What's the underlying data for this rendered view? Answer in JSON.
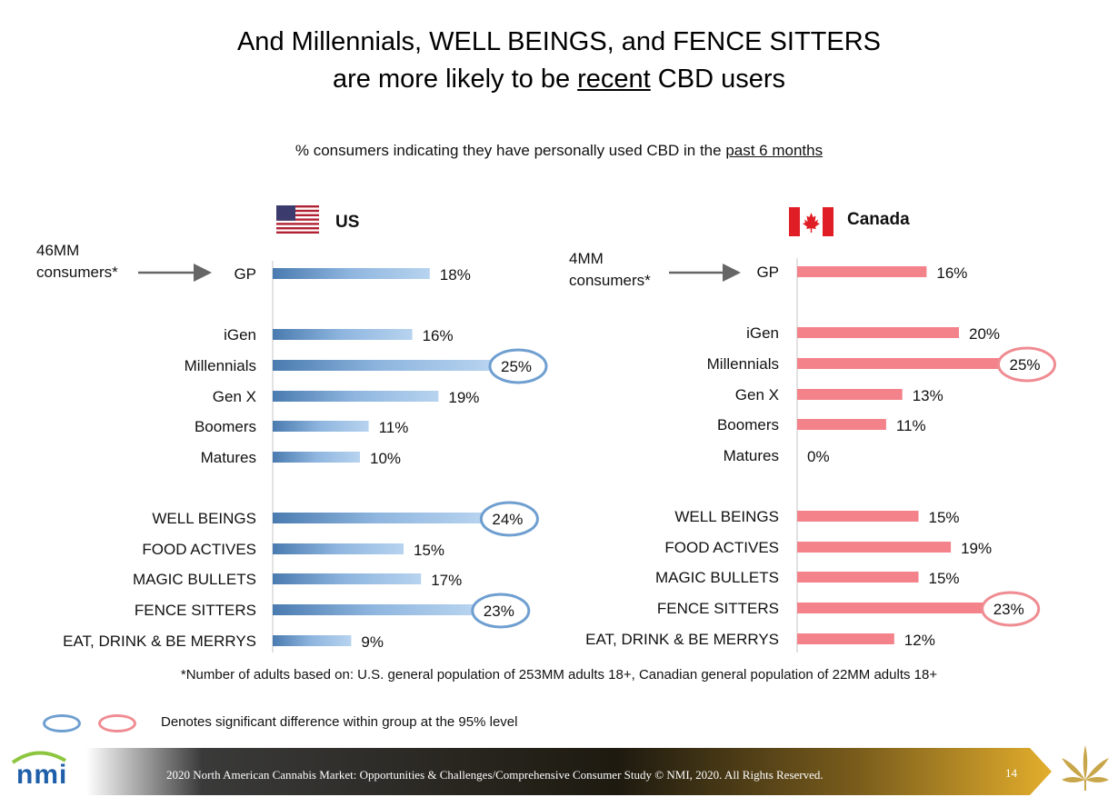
{
  "header": {
    "title_line1": "And Millennials, WELL BEINGS, and FENCE SITTERS",
    "title_line2_pre": "are more likely to be ",
    "title_line2_underlined": "recent",
    "title_line2_post": " CBD users",
    "subtitle_pre": "% consumers indicating they have personally used CBD in the ",
    "subtitle_underlined": "past 6 months"
  },
  "us": {
    "country_label": "US",
    "consumers_note_line1": "46MM",
    "consumers_note_line2": "consumers*"
  },
  "canada": {
    "country_label": "Canada",
    "consumers_note_line1": "4MM",
    "consumers_note_line2": "consumers*"
  },
  "chart_data": [
    {
      "type": "bar",
      "orientation": "horizontal",
      "country": "US",
      "color": "#7fa7d0",
      "highlight_color": "#6f9fd0",
      "categories": [
        "GP",
        "iGen",
        "Millennials",
        "Gen X",
        "Boomers",
        "Matures",
        "WELL BEINGS",
        "FOOD ACTIVES",
        "MAGIC BULLETS",
        "FENCE SITTERS",
        "EAT, DRINK & BE MERRYS"
      ],
      "values": [
        18,
        16,
        25,
        19,
        11,
        10,
        24,
        15,
        17,
        23,
        9
      ],
      "labels": [
        "18%",
        "16%",
        "25%",
        "19%",
        "11%",
        "10%",
        "24%",
        "15%",
        "17%",
        "23%",
        "9%"
      ],
      "highlighted": [
        "Millennials",
        "WELL BEINGS",
        "FENCE SITTERS"
      ]
    },
    {
      "type": "bar",
      "orientation": "horizontal",
      "country": "Canada",
      "color": "#f3828a",
      "highlight_color": "#ef8c92",
      "categories": [
        "GP",
        "iGen",
        "Millennials",
        "Gen X",
        "Boomers",
        "Matures",
        "WELL BEINGS",
        "FOOD ACTIVES",
        "MAGIC BULLETS",
        "FENCE SITTERS",
        "EAT, DRINK & BE MERRYS"
      ],
      "values": [
        16,
        20,
        25,
        13,
        11,
        0,
        15,
        19,
        15,
        23,
        12
      ],
      "labels": [
        "16%",
        "20%",
        "25%",
        "13%",
        "11%",
        "0%",
        "15%",
        "19%",
        "15%",
        "23%",
        "12%"
      ],
      "highlighted": [
        "Millennials",
        "FENCE SITTERS"
      ]
    }
  ],
  "footnote": "*Number of adults based on: U.S. general population of 253MM adults 18+, Canadian general population of 22MM adults 18+",
  "legend": {
    "text": "Denotes significant difference within group at the 95% level",
    "colors": [
      "#6f9fd0",
      "#ef8c92"
    ]
  },
  "footer": {
    "logo": "nmi",
    "text": "2020 North American Cannabis Market: Opportunities & Challenges/Comprehensive  Consumer Study © NMI, 2020. All Rights Reserved.",
    "page_number": "14"
  }
}
